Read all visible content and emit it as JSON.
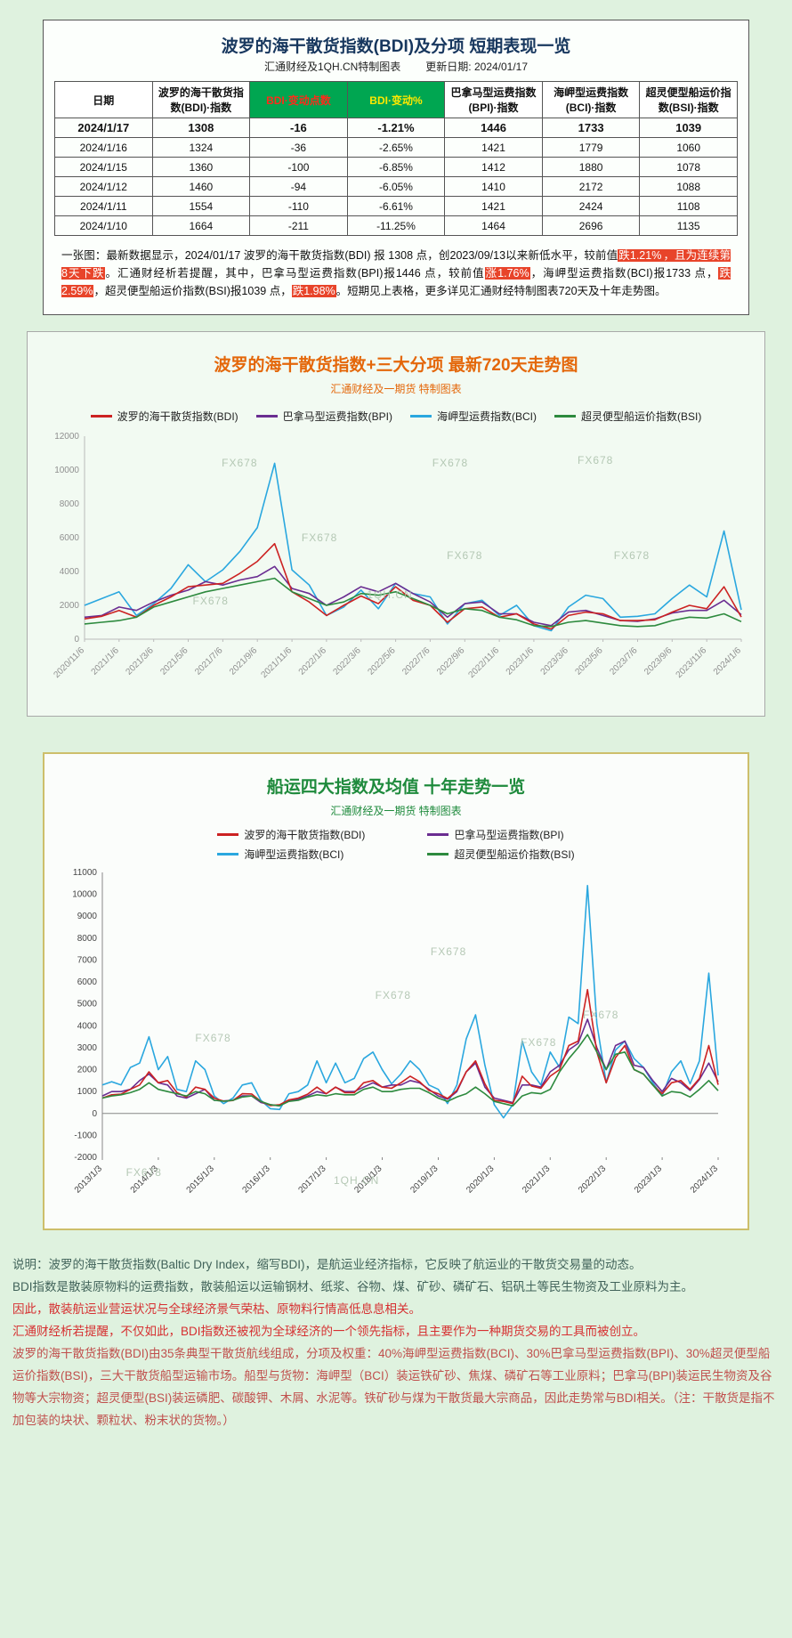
{
  "watermark": {
    "brand": "FX678",
    "site": "1QH.CN"
  },
  "table_panel": {
    "title": "波罗的海干散货指数(BDI)及分项  短期表现一览",
    "subtitle": "汇通财经及1QH.CN特制图表",
    "update": "更新日期: 2024/01/17",
    "note": [
      {
        "t": "一张图：最新数据显示，2024/01/17 波罗的海干散货指数(BDI) 报 1308 点，创2023/09/13以来新低水平，较前值",
        "s": "n"
      },
      {
        "t": "跌1.21%",
        "s": "h"
      },
      {
        "t": "，且为连续第8天下跌",
        "s": "h"
      },
      {
        "t": "。汇通财经析若提醒，其中，巴拿马型运费指数(BPI)报1446 点，较前值",
        "s": "n"
      },
      {
        "t": "涨1.76%",
        "s": "h"
      },
      {
        "t": "，海岬型运费指数(BCI)报1733 点，",
        "s": "n"
      },
      {
        "t": "跌2.59%",
        "s": "h"
      },
      {
        "t": "，超灵便型船运价指数(BSI)报1039 点，",
        "s": "n"
      },
      {
        "t": "跌1.98%",
        "s": "h"
      },
      {
        "t": "。短期见上表格，更多详见汇通财经特制图表720天及十年走势图。",
        "s": "n"
      }
    ]
  },
  "table": {
    "headers": [
      {
        "label": "日期"
      },
      {
        "label": "波罗的海干散货指数(BDI)·指数"
      },
      {
        "label": "BDI·变动点数",
        "accent": "points"
      },
      {
        "label": "BDI·变动%",
        "accent": "pct"
      },
      {
        "label": "巴拿马型运费指数(BPI)·指数"
      },
      {
        "label": "海岬型运费指数(BCI)·指数"
      },
      {
        "label": "超灵便型船运价指数(BSI)·指数"
      }
    ],
    "rows": [
      [
        "2024/1/17",
        "1308",
        "-16",
        "-1.21%",
        "1446",
        "1733",
        "1039"
      ],
      [
        "2024/1/16",
        "1324",
        "-36",
        "-2.65%",
        "1421",
        "1779",
        "1060"
      ],
      [
        "2024/1/15",
        "1360",
        "-100",
        "-6.85%",
        "1412",
        "1880",
        "1078"
      ],
      [
        "2024/1/12",
        "1460",
        "-94",
        "-6.05%",
        "1410",
        "2172",
        "1088"
      ],
      [
        "2024/1/11",
        "1554",
        "-110",
        "-6.61%",
        "1421",
        "2424",
        "1108"
      ],
      [
        "2024/1/10",
        "1664",
        "-211",
        "-11.25%",
        "1464",
        "2696",
        "1135"
      ]
    ]
  },
  "chart_data": [
    {
      "type": "line",
      "title": "波罗的海干散货指数+三大分项  最新720天走势图",
      "subtitle": "汇通财经及一期货  特制图表",
      "ylim": [
        0,
        12000
      ],
      "yticks": [
        0,
        2000,
        4000,
        6000,
        8000,
        10000,
        12000
      ],
      "points_per_tick": 2,
      "x_tick_labels": [
        "2020/11/6",
        "2021/1/6",
        "2021/3/6",
        "2021/5/6",
        "2021/7/6",
        "2021/9/6",
        "2021/11/6",
        "2022/1/6",
        "2022/3/6",
        "2022/5/6",
        "2022/7/6",
        "2022/9/6",
        "2022/11/6",
        "2023/1/6",
        "2023/3/6",
        "2023/5/6",
        "2023/7/6",
        "2023/9/6",
        "2023/11/6",
        "2024/1/6"
      ],
      "legend_position": "top",
      "grid": false,
      "series": [
        {
          "name": "波罗的海干散货指数(BDI)",
          "color": "#cc2222",
          "values": [
            1200,
            1350,
            1700,
            1300,
            2000,
            2500,
            3100,
            3200,
            3300,
            3900,
            4600,
            5650,
            2800,
            2200,
            1400,
            2000,
            2550,
            2100,
            3100,
            2300,
            2000,
            1000,
            1800,
            1900,
            1300,
            1500,
            900,
            600,
            1400,
            1600,
            1500,
            1100,
            1100,
            1150,
            1600,
            2000,
            1800,
            3100,
            1308
          ]
        },
        {
          "name": "巴拿马型运费指数(BPI)",
          "color": "#6a2d91",
          "values": [
            1300,
            1400,
            1900,
            1700,
            2200,
            2600,
            2900,
            3400,
            3200,
            3500,
            3700,
            4300,
            3000,
            2700,
            2000,
            2500,
            3100,
            2800,
            3300,
            2700,
            2200,
            1300,
            2100,
            2200,
            1500,
            1500,
            1000,
            800,
            1600,
            1700,
            1400,
            1100,
            1050,
            1200,
            1550,
            1700,
            1700,
            2300,
            1446
          ]
        },
        {
          "name": "海岬型运费指数(BCI)",
          "color": "#2aa7df",
          "values": [
            2000,
            2400,
            2800,
            1400,
            2100,
            3000,
            4400,
            3400,
            4100,
            5200,
            6600,
            10400,
            4100,
            3200,
            1400,
            1900,
            2900,
            1800,
            3300,
            2700,
            2500,
            900,
            2100,
            2300,
            1400,
            2000,
            800,
            500,
            1900,
            2600,
            2400,
            1300,
            1350,
            1500,
            2400,
            3200,
            2500,
            6400,
            1733
          ]
        },
        {
          "name": "超灵便型船运价指数(BSI)",
          "color": "#2d8a3e",
          "values": [
            900,
            1000,
            1100,
            1300,
            1900,
            2200,
            2500,
            2800,
            3000,
            3200,
            3400,
            3600,
            2800,
            2400,
            2000,
            2200,
            2700,
            2600,
            2800,
            2400,
            2000,
            1500,
            1800,
            1700,
            1300,
            1150,
            800,
            750,
            1000,
            1100,
            950,
            800,
            750,
            800,
            1100,
            1300,
            1250,
            1500,
            1039
          ]
        }
      ]
    },
    {
      "type": "line",
      "title": "船运四大指数及均值 十年走势一览",
      "subtitle": "汇通财经及一期货  特制图表",
      "ylim": [
        -2000,
        11000
      ],
      "yticks": [
        -2000,
        -1000,
        0,
        1000,
        2000,
        3000,
        4000,
        5000,
        6000,
        7000,
        8000,
        9000,
        10000,
        11000
      ],
      "points_per_tick": 6,
      "x_tick_labels": [
        "2013/1/3",
        "2014/1/3",
        "2015/1/3",
        "2016/1/3",
        "2017/1/3",
        "2018/1/3",
        "2019/1/3",
        "2020/1/3",
        "2021/1/3",
        "2022/1/3",
        "2023/1/3",
        "2024/1/3"
      ],
      "legend_position": "top-grid",
      "grid": false,
      "series": [
        {
          "name": "波罗的海干散货指数(BDI)",
          "color": "#cc2222",
          "values": [
            700,
            850,
            880,
            1100,
            1300,
            1900,
            1400,
            1500,
            950,
            750,
            1200,
            1100,
            700,
            560,
            590,
            900,
            890,
            550,
            360,
            400,
            620,
            700,
            880,
            1200,
            900,
            1200,
            950,
            950,
            1400,
            1500,
            1200,
            1150,
            1400,
            1700,
            1450,
            1050,
            900,
            680,
            1050,
            1900,
            2400,
            1350,
            600,
            550,
            450,
            1700,
            1250,
            1150,
            1700,
            2000,
            3100,
            3300,
            5650,
            2800,
            1400,
            2550,
            3100,
            2000,
            1800,
            1300,
            900,
            1400,
            1500,
            1100,
            1600,
            3100,
            1308
          ]
        },
        {
          "name": "巴拿马型运费指数(BPI)",
          "color": "#6a2d91",
          "values": [
            800,
            1000,
            1000,
            1100,
            1500,
            1800,
            1400,
            1300,
            800,
            700,
            900,
            1100,
            600,
            570,
            600,
            800,
            800,
            500,
            400,
            350,
            600,
            650,
            800,
            1000,
            900,
            1200,
            1000,
            1000,
            1200,
            1400,
            1200,
            1300,
            1300,
            1500,
            1400,
            1100,
            800,
            650,
            1000,
            1900,
            2300,
            1200,
            700,
            600,
            500,
            1300,
            1300,
            1200,
            1900,
            2200,
            2900,
            3200,
            4300,
            3000,
            2000,
            3100,
            3300,
            2200,
            2100,
            1500,
            1000,
            1600,
            1400,
            1050,
            1550,
            2300,
            1446
          ]
        },
        {
          "name": "海岬型运费指数(BCI)",
          "color": "#2aa7df",
          "values": [
            1300,
            1450,
            1300,
            2100,
            2300,
            3500,
            2000,
            2600,
            1100,
            1000,
            2400,
            2000,
            800,
            450,
            700,
            1300,
            1400,
            600,
            220,
            180,
            900,
            1000,
            1300,
            2400,
            1400,
            2300,
            1400,
            1600,
            2500,
            2800,
            2000,
            1350,
            1800,
            2400,
            2000,
            1300,
            1100,
            450,
            1300,
            3400,
            4500,
            2200,
            400,
            -200,
            400,
            3300,
            1900,
            1300,
            2800,
            2100,
            4400,
            4100,
            10400,
            4100,
            1400,
            2900,
            3300,
            2500,
            2100,
            1400,
            800,
            1900,
            2400,
            1350,
            2400,
            6400,
            1733
          ]
        },
        {
          "name": "超灵便型船运价指数(BSI)",
          "color": "#2d8a3e",
          "values": [
            700,
            800,
            850,
            950,
            1100,
            1400,
            1100,
            1000,
            900,
            800,
            1000,
            900,
            600,
            560,
            600,
            750,
            800,
            550,
            400,
            350,
            550,
            600,
            750,
            850,
            800,
            900,
            850,
            850,
            1100,
            1200,
            1000,
            1000,
            1100,
            1150,
            1150,
            950,
            700,
            550,
            750,
            900,
            1200,
            900,
            550,
            450,
            350,
            800,
            950,
            900,
            1100,
            1900,
            2500,
            3000,
            3600,
            2800,
            2000,
            2700,
            2800,
            2000,
            1800,
            1300,
            800,
            1000,
            950,
            750,
            1100,
            1500,
            1039
          ]
        }
      ]
    }
  ],
  "description": {
    "lines": [
      {
        "cls": "ln-teal",
        "text": "说明：波罗的海干散货指数(Baltic Dry Index，缩写BDI)，是航运业经济指标，它反映了航运业的干散货交易量的动态。"
      },
      {
        "cls": "ln-teal",
        "text": "BDI指数是散装原物料的运费指数，散装船运以运输钢材、纸浆、谷物、煤、矿砂、磷矿石、铝矾土等民生物资及工业原料为主。"
      },
      {
        "cls": "ln-red",
        "text": "因此，散装航运业营运状况与全球经济景气荣枯、原物料行情高低息息相关。"
      },
      {
        "cls": "ln-red",
        "text": "汇通财经析若提醒，不仅如此，BDI指数还被视为全球经济的一个领先指标，且主要作为一种期货交易的工具而被创立。"
      },
      {
        "cls": "ln-maroon",
        "text": "波罗的海干散货指数(BDI)由35条典型干散货航线组成，分项及权重：40%海岬型运费指数(BCI)、30%巴拿马型运费指数(BPI)、30%超灵便型船运价指数(BSI)，三大干散货船型运输市场。船型与货物：海岬型（BCI）装运铁矿砂、焦煤、磷矿石等工业原料；巴拿马(BPI)装运民生物资及谷物等大宗物资；超灵便型(BSI)装运磷肥、碳酸钾、木屑、水泥等。铁矿砂与煤为干散货最大宗商品，因此走势常与BDI相关。（注：干散货是指不加包装的块状、颗粒状、粉末状的货物。）"
      }
    ]
  }
}
